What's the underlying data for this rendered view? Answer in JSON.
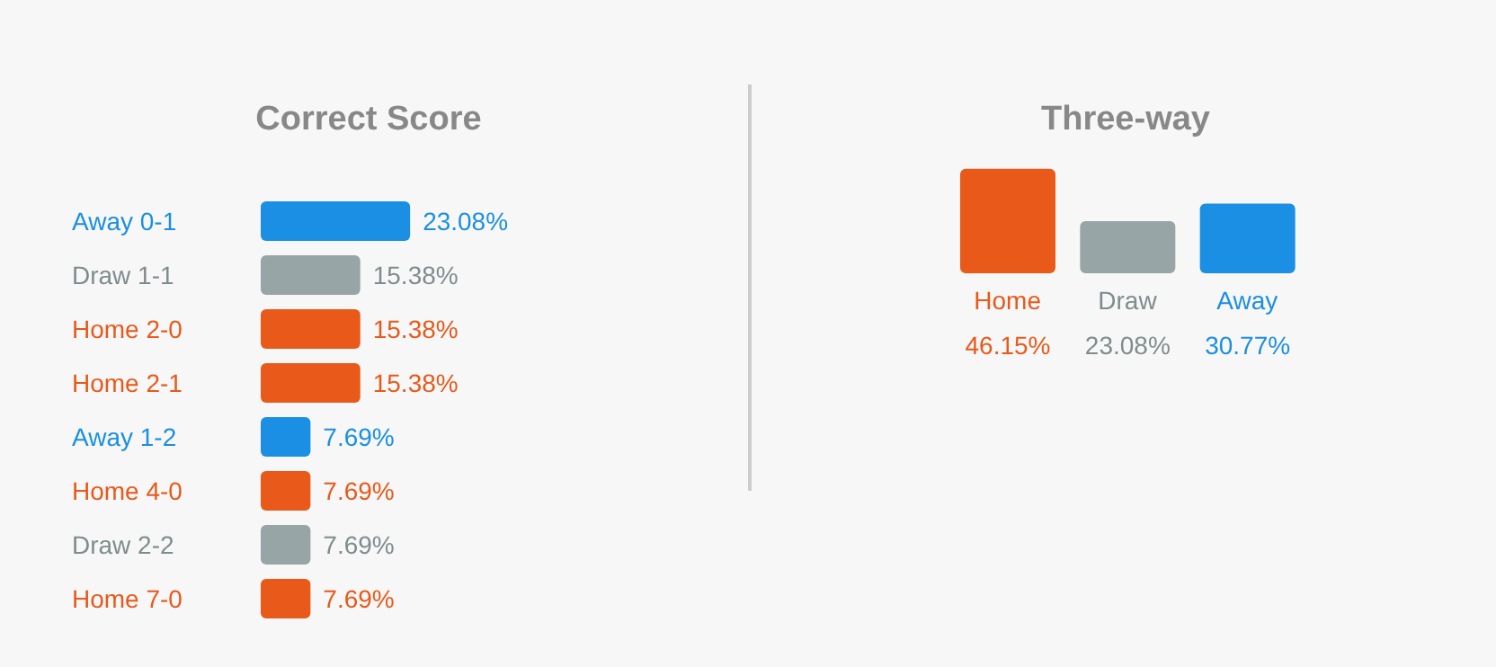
{
  "chart_data": [
    {
      "type": "bar",
      "orientation": "horizontal",
      "title": "Correct Score",
      "categories": [
        "Away 0-1",
        "Draw 1-1",
        "Home 2-0",
        "Home 2-1",
        "Away 1-2",
        "Home 4-0",
        "Draw 2-2",
        "Home 7-0"
      ],
      "values": [
        23.08,
        15.38,
        15.38,
        15.38,
        7.69,
        7.69,
        7.69,
        7.69
      ],
      "colors": [
        "#1a8fe3",
        "#98a5a6",
        "#e8591a",
        "#e8591a",
        "#1a8fe3",
        "#e8591a",
        "#98a5a6",
        "#e8591a"
      ],
      "value_labels": [
        "23.08%",
        "15.38%",
        "15.38%",
        "15.38%",
        "7.69%",
        "7.69%",
        "7.69%",
        "7.69%"
      ]
    },
    {
      "type": "bar",
      "title": "Three-way",
      "categories": [
        "Home",
        "Draw",
        "Away"
      ],
      "values": [
        46.15,
        23.08,
        30.77
      ],
      "colors": [
        "#e8591a",
        "#98a5a6",
        "#1a8fe3"
      ],
      "value_labels": [
        "46.15%",
        "23.08%",
        "30.77%"
      ]
    }
  ]
}
